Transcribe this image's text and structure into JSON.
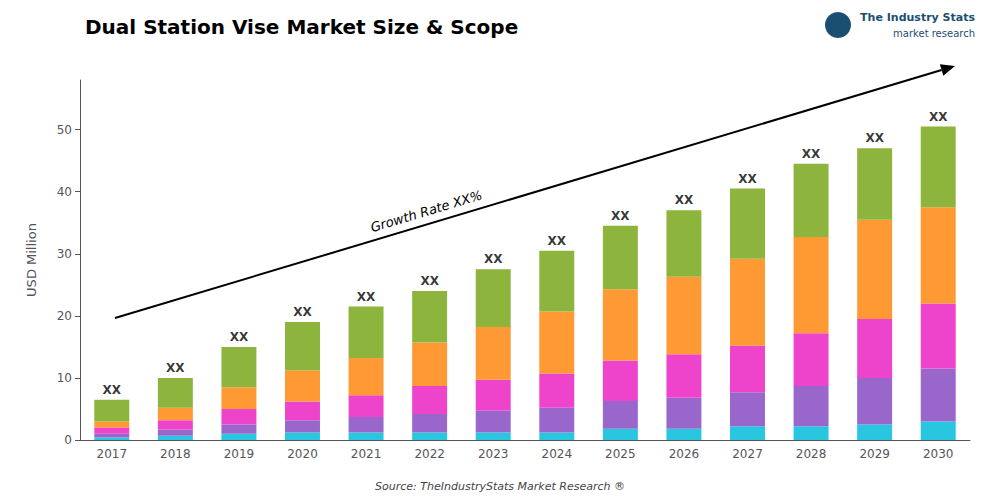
{
  "chart_data": {
    "type": "bar",
    "stacked": true,
    "grid": false,
    "title": "Dual Station Vise Market Size & Scope",
    "ylabel": "USD Million",
    "categories": [
      "2017",
      "2018",
      "2019",
      "2020",
      "2021",
      "2022",
      "2023",
      "2024",
      "2025",
      "2026",
      "2027",
      "2028",
      "2029",
      "2030"
    ],
    "series": [
      {
        "color": "#29C6E0",
        "values": [
          0.4,
          0.7,
          1.0,
          1.2,
          1.2,
          1.2,
          1.2,
          1.2,
          1.8,
          1.8,
          2.2,
          2.2,
          2.5,
          3.0
        ]
      },
      {
        "color": "#9966CC",
        "values": [
          0.6,
          1.0,
          1.5,
          2.0,
          2.5,
          3.0,
          3.5,
          4.0,
          4.5,
          5.0,
          5.5,
          6.5,
          7.5,
          8.5
        ]
      },
      {
        "color": "#EE44CC",
        "values": [
          1.0,
          1.5,
          2.5,
          3.0,
          3.5,
          4.5,
          5.0,
          5.5,
          6.5,
          7.0,
          7.5,
          8.5,
          9.5,
          10.5
        ]
      },
      {
        "color": "#FF9933",
        "values": [
          1.0,
          2.0,
          3.5,
          5.0,
          6.0,
          7.0,
          8.5,
          10.0,
          11.5,
          12.5,
          14.0,
          15.5,
          16.0,
          15.5
        ]
      },
      {
        "color": "#8DB43C",
        "values": [
          3.5,
          4.8,
          6.5,
          7.8,
          8.3,
          8.3,
          9.3,
          9.8,
          10.2,
          10.7,
          11.3,
          11.8,
          11.5,
          13.0
        ]
      }
    ],
    "totals": [
      6.5,
      10.0,
      15.0,
      19.0,
      21.5,
      24.0,
      27.5,
      30.5,
      34.5,
      37.0,
      40.5,
      44.5,
      47.0,
      50.5
    ],
    "total_labels": [
      "XX",
      "XX",
      "XX",
      "XX",
      "XX",
      "XX",
      "XX",
      "XX",
      "XX",
      "XX",
      "XX",
      "XX",
      "XX",
      "XX"
    ],
    "annotations": [
      "Growth Rate XX%",
      "Source: TheIndustryStats Market Research ®",
      "The Industry Stats",
      "market research"
    ],
    "ylim": [
      0,
      58
    ],
    "yticks": [
      0,
      10,
      20,
      30,
      40,
      50
    ]
  }
}
